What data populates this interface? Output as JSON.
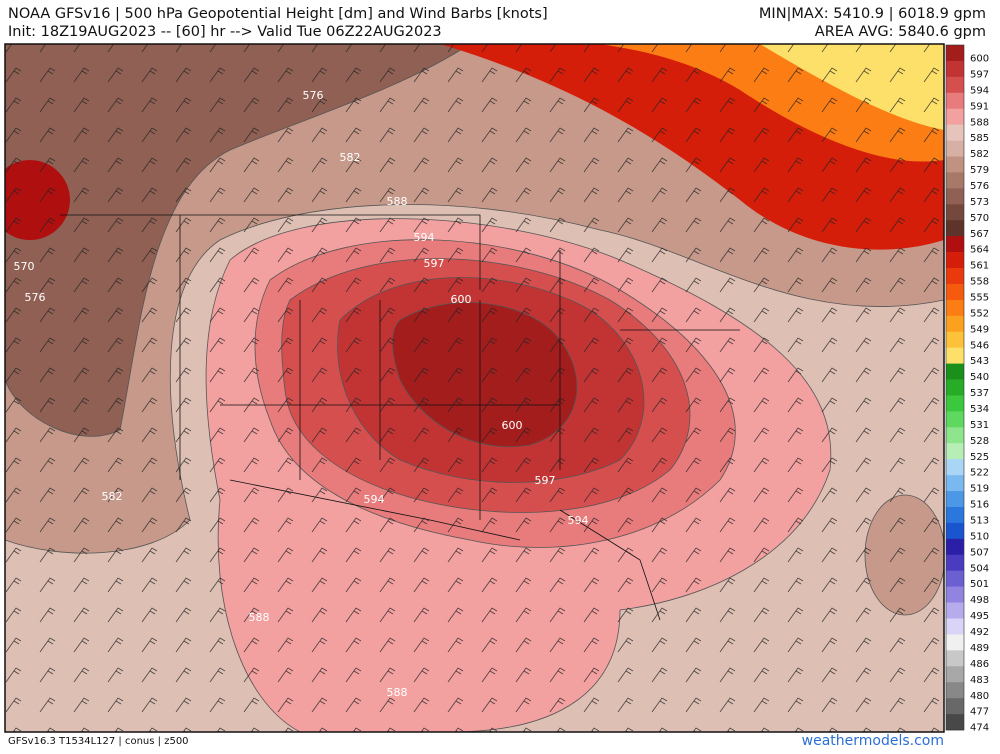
{
  "header": {
    "title": "NOAA GFSv16 |  500 hPa Geopotential Height [dm] and Wind Barbs [knots]",
    "subtitle": "Init: 18Z19AUG2023 -- [60] hr --> Valid Tue 06Z22AUG2023",
    "minmax": "MIN|MAX: 5410.9 | 6018.9 gpm",
    "area_avg": "AREA AVG: 5840.6 gpm"
  },
  "contour_labels": [
    "576",
    "582",
    "588",
    "594",
    "597",
    "600",
    "570",
    "576",
    "582",
    "600",
    "597",
    "594",
    "594",
    "588",
    "588"
  ],
  "colorbar": {
    "labels": [
      600,
      597,
      594,
      591,
      588,
      585,
      582,
      579,
      576,
      573,
      570,
      567,
      564,
      561,
      558,
      555,
      552,
      549,
      546,
      543,
      540,
      537,
      534,
      531,
      528,
      525,
      522,
      519,
      516,
      513,
      510,
      507,
      504,
      501,
      498,
      495,
      492,
      489,
      486,
      483,
      480,
      477,
      474
    ],
    "colors": [
      "#a31d1d",
      "#c23434",
      "#d64f4f",
      "#e87b7b",
      "#f2a0a0",
      "#e6c4bb",
      "#d6b0a5",
      "#c09282",
      "#a87868",
      "#8f6053",
      "#75483d",
      "#5e3329",
      "#b00f0f",
      "#d41e0a",
      "#ea3a0d",
      "#f55a0f",
      "#fb7d14",
      "#fca11f",
      "#fdc13a",
      "#fde06a",
      "#1a8f1a",
      "#27ac27",
      "#3cc83c",
      "#5fd85f",
      "#8ee58e",
      "#b6eeb6",
      "#a9d6f5",
      "#7ab9ef",
      "#4c98e6",
      "#2a78de",
      "#1a55d0",
      "#2b1fa8",
      "#4a3bc0",
      "#6c5fd2",
      "#9184e0",
      "#b6acec",
      "#dad4f6",
      "#f0f0f0",
      "#c8c8c8",
      "#a8a8a8",
      "#888888",
      "#686868",
      "#484848"
    ]
  },
  "footer": {
    "model": "GFSv16.3 T1534L127 | conus | z500",
    "site": "weathermodels.com"
  }
}
